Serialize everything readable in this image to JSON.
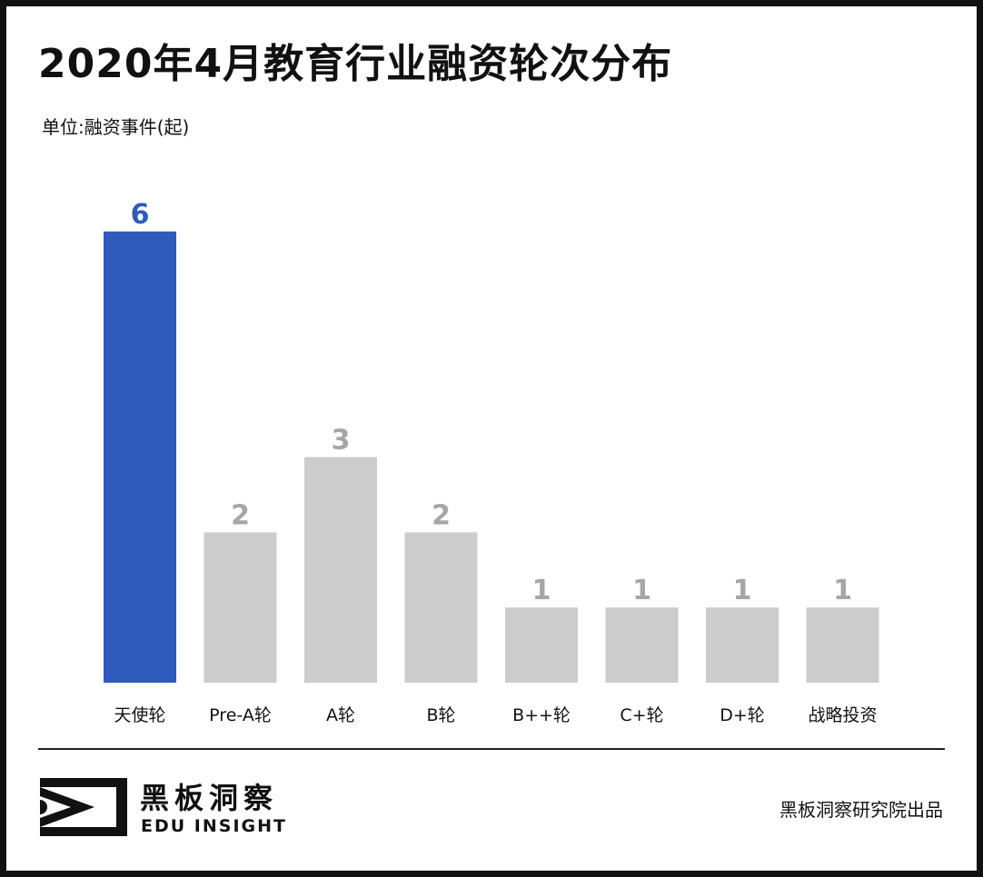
{
  "title": "2020年4月教育行业融资轮次分布",
  "unit_label": "单位:融资事件(起)",
  "chart_data": {
    "type": "bar",
    "title": "2020年4月教育行业融资轮次分布",
    "ylabel": "单位:融资事件(起)",
    "xlabel": "",
    "categories": [
      "天使轮",
      "Pre-A轮",
      "A轮",
      "B轮",
      "B++轮",
      "C+轮",
      "D+轮",
      "战略投资"
    ],
    "values": [
      6,
      2,
      3,
      2,
      1,
      1,
      1,
      1
    ],
    "ylim": [
      0,
      6
    ],
    "grid": false,
    "highlight_index": 0,
    "colors": {
      "highlight": "#2f5bbd",
      "default": "#cccccc",
      "highlight_label": "#2f5bbd",
      "default_label": "#a6a6a6",
      "category_label": "#111111"
    }
  },
  "logo": {
    "cn": "黑板洞察",
    "en": "EDU INSIGHT",
    "icon": "eye-icon"
  },
  "source": "黑板洞察研究院出品"
}
